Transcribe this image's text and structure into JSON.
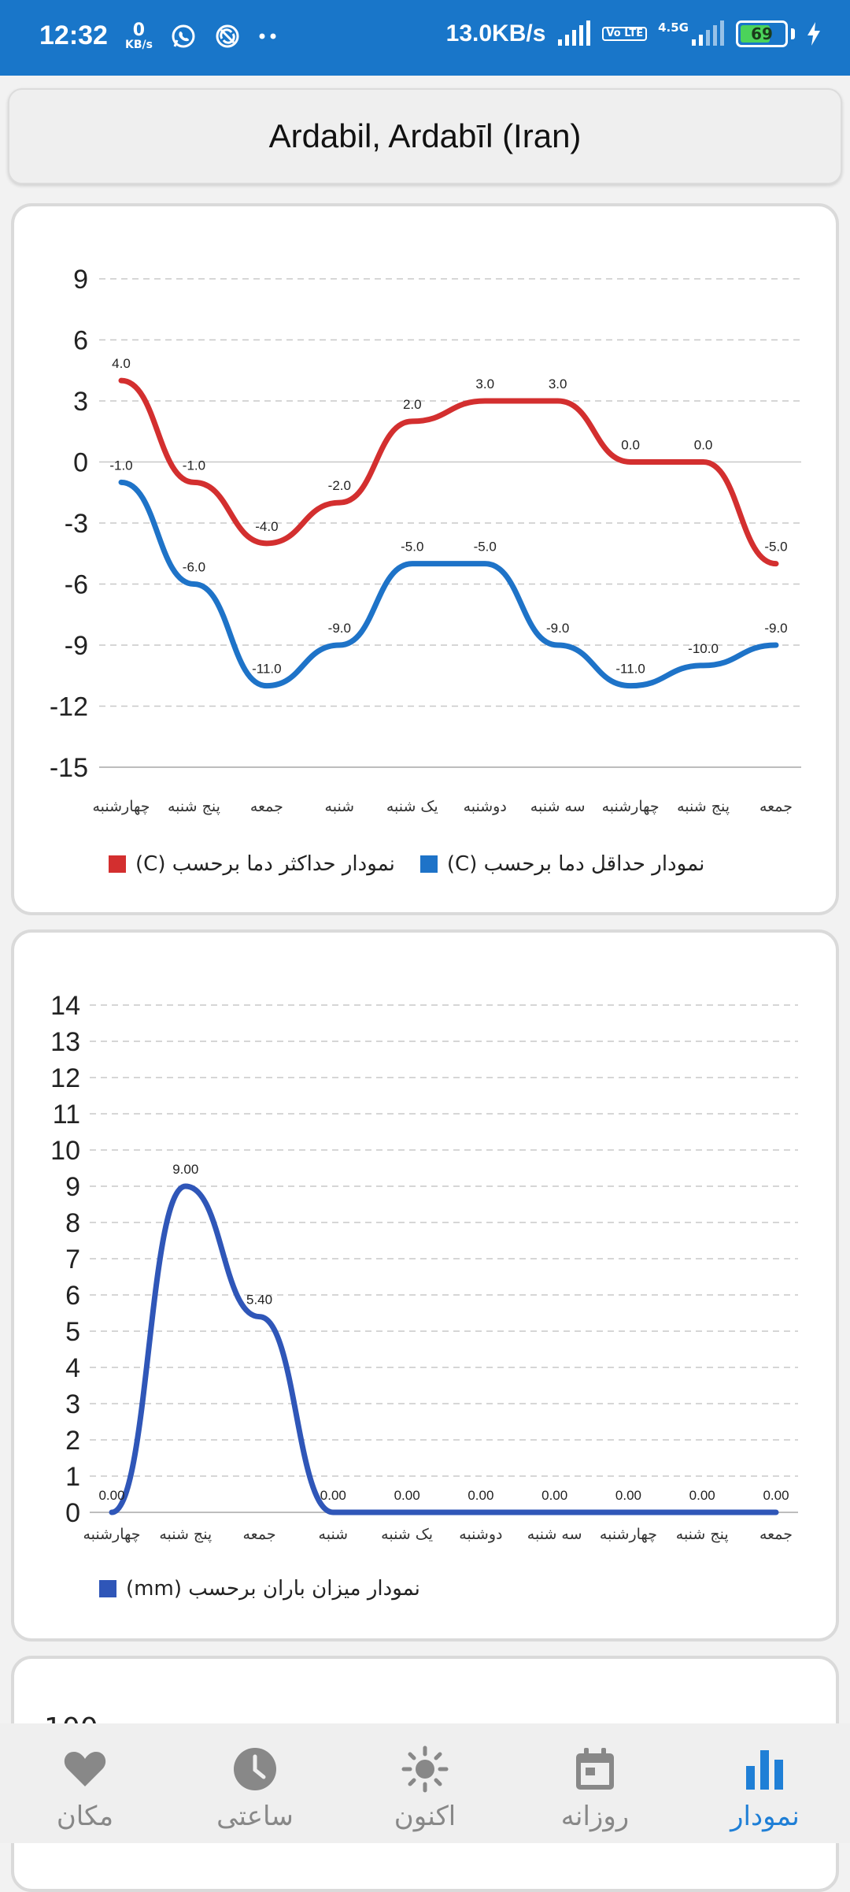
{
  "status_bar": {
    "time": "12:32",
    "net_kb": "0",
    "net_kb_unit": "KB/s",
    "speed": "13.0KB/s",
    "volte": "Vo LTE",
    "network": "4.5G",
    "battery": "69",
    "battery_level": 0.69,
    "icons": [
      "whatsapp-icon",
      "sync-icon",
      "more-dots-icon",
      "signal-icon",
      "charging-icon"
    ]
  },
  "location": {
    "title": "Ardabil, Ardabīl (Iran)"
  },
  "colors": {
    "max": "#d32f2f",
    "min": "#1e73c8",
    "rain": "#2f56b8",
    "active": "#1f7fd6"
  },
  "charts": {
    "temp_legend": {
      "max": "نمودار  حداکثر دما برحسب (C)",
      "min": "نمودار حداقل دما برحسب (C)"
    },
    "rain_legend": "نمودار  میزان باران برحسب (mm)"
  },
  "chart_data": [
    {
      "type": "line",
      "categories": [
        "چهارشنبه",
        "پنج شنبه",
        "جمعه",
        "شنبه",
        "یک شنبه",
        "دوشنبه",
        "سه شنبه",
        "چهارشنبه",
        "پنج شنبه",
        "جمعه"
      ],
      "y_ticks": [
        "9",
        "6",
        "3",
        "0",
        "-3",
        "-6",
        "-9",
        "-12",
        "-15"
      ],
      "ylim": [
        -15,
        9
      ],
      "grid": true,
      "legend": "bottom",
      "series": [
        {
          "values": [
            4.0,
            -1.0,
            -4.0,
            -2.0,
            2.0,
            3.0,
            3.0,
            0.0,
            0.0,
            -5.0
          ],
          "labels": [
            "4.0",
            "-1.0",
            "-4.0",
            "-2.0",
            "2.0",
            "3.0",
            "3.0",
            "0.0",
            "0.0",
            "-5.0"
          ],
          "color": "#d32f2f"
        },
        {
          "values": [
            -1.0,
            -6.0,
            -11.0,
            -9.0,
            -5.0,
            -5.0,
            -9.0,
            -11.0,
            -10.0,
            -9.0
          ],
          "labels": [
            "-1.0",
            "-6.0",
            "-11.0",
            "-9.0",
            "-5.0",
            "-5.0",
            "-9.0",
            "-11.0",
            "-10.0",
            "-9.0"
          ],
          "color": "#1e73c8"
        }
      ]
    },
    {
      "type": "line",
      "categories": [
        "چهارشنبه",
        "پنج شنبه",
        "جمعه",
        "شنبه",
        "یک شنبه",
        "دوشنبه",
        "سه شنبه",
        "چهارشنبه",
        "پنج شنبه",
        "جمعه"
      ],
      "y_ticks": [
        "14",
        "13",
        "12",
        "11",
        "10",
        "9",
        "8",
        "7",
        "6",
        "5",
        "4",
        "3",
        "2",
        "1",
        "0"
      ],
      "ylim": [
        0,
        14
      ],
      "grid": true,
      "legend": "bottom",
      "series": [
        {
          "values": [
            0,
            9.0,
            5.4,
            0,
            0,
            0,
            0,
            0,
            0,
            0
          ],
          "labels": [
            "0.00",
            "9.00",
            "5.40",
            "0.00",
            "0.00",
            "0.00",
            "0.00",
            "0.00",
            "0.00",
            "0.00"
          ],
          "color": "#2f56b8"
        }
      ]
    }
  ],
  "card3": {
    "first_tick": "100"
  },
  "nav": {
    "items": [
      {
        "label": "مکان",
        "icon": "heart-icon"
      },
      {
        "label": "ساعتی",
        "icon": "clock-icon"
      },
      {
        "label": "اکنون",
        "icon": "sun-icon"
      },
      {
        "label": "روزانه",
        "icon": "calendar-icon"
      },
      {
        "label": "نمودار",
        "icon": "bar-chart-icon",
        "active": true
      }
    ]
  }
}
